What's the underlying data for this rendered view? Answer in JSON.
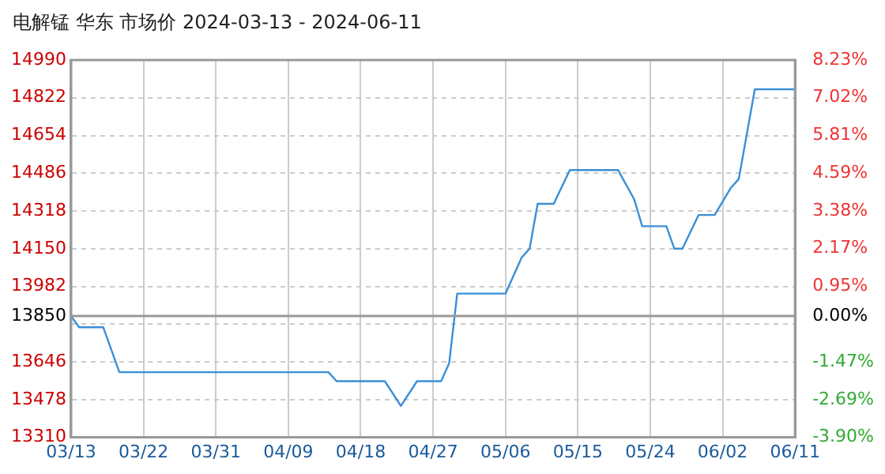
{
  "chart_data": {
    "type": "line",
    "title": "电解锰 华东 市场价 2024-03-13 - 2024-06-11",
    "x": [
      "2024-03-13",
      "2024-03-14",
      "2024-03-17",
      "2024-03-19",
      "2024-04-14",
      "2024-04-15",
      "2024-04-21",
      "2024-04-23",
      "2024-04-25",
      "2024-04-28",
      "2024-04-29",
      "2024-04-30",
      "2024-05-06",
      "2024-05-08",
      "2024-05-09",
      "2024-05-10",
      "2024-05-12",
      "2024-05-14",
      "2024-05-20",
      "2024-05-22",
      "2024-05-23",
      "2024-05-26",
      "2024-05-27",
      "2024-05-28",
      "2024-05-30",
      "2024-06-01",
      "2024-06-03",
      "2024-06-04",
      "2024-06-06",
      "2024-06-11"
    ],
    "series": [
      {
        "color": "#3a8fd6",
        "values": [
          13850,
          13800,
          13800,
          13600,
          13600,
          13560,
          13560,
          13450,
          13560,
          13560,
          13640,
          13950,
          13950,
          14110,
          14150,
          14350,
          14350,
          14500,
          14500,
          14370,
          14250,
          14250,
          14150,
          14150,
          14300,
          14300,
          14420,
          14460,
          14860,
          14860
        ]
      }
    ],
    "xlim": [
      "2024-03-13",
      "2024-06-11"
    ],
    "xticks": [
      {
        "value": "2024-03-13",
        "label": "03/13"
      },
      {
        "value": "2024-03-22",
        "label": "03/22"
      },
      {
        "value": "2024-03-31",
        "label": "03/31"
      },
      {
        "value": "2024-04-09",
        "label": "04/09"
      },
      {
        "value": "2024-04-18",
        "label": "04/18"
      },
      {
        "value": "2024-04-27",
        "label": "04/27"
      },
      {
        "value": "2024-05-06",
        "label": "05/06"
      },
      {
        "value": "2024-05-15",
        "label": "05/15"
      },
      {
        "value": "2024-05-24",
        "label": "05/24"
      },
      {
        "value": "2024-06-02",
        "label": "06/02"
      },
      {
        "value": "2024-06-11",
        "label": "06/11"
      }
    ],
    "ylim": [
      13310,
      14990
    ],
    "yticks": [
      13310,
      13478,
      13646,
      {
        "value": 13814,
        "label": null
      },
      13850,
      13982,
      14150,
      14318,
      14486,
      14654,
      14822,
      14990
    ],
    "y2lim": [
      -3.9,
      8.23
    ],
    "y2ticks": [
      {
        "value": -3.9,
        "label": "-3.90%"
      },
      {
        "value": -2.69,
        "label": "-2.69%"
      },
      {
        "value": -1.47,
        "label": "-1.47%"
      },
      {
        "value": 0,
        "label": "0.00%"
      },
      {
        "value": 0.95,
        "label": "0.95%"
      },
      {
        "value": 2.17,
        "label": "2.17%"
      },
      {
        "value": 3.38,
        "label": "3.38%"
      },
      {
        "value": 4.59,
        "label": "4.59%"
      },
      {
        "value": 5.81,
        "label": "5.81%"
      },
      {
        "value": 7.02,
        "label": "7.02%"
      },
      {
        "value": 8.23,
        "label": "8.23%"
      }
    ],
    "ref_lines": [
      {
        "axis": "y",
        "value": 13850,
        "color": "#999999"
      }
    ],
    "grid": true,
    "legend": false,
    "marker": "none",
    "line_style": "solid"
  }
}
